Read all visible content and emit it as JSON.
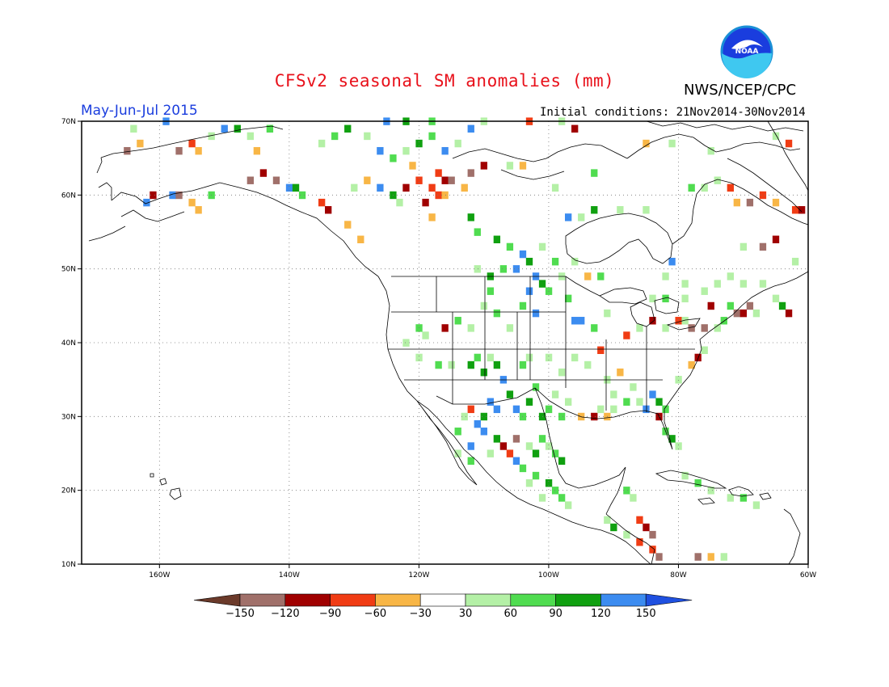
{
  "header": {
    "title": "CFSv2 seasonal SM anomalies (mm)",
    "agency": "NWS/NCEP/CPC",
    "period": "May-Jun-Jul 2015",
    "initial_conditions": "Initial conditions: 21Nov2014-30Nov2014",
    "logo_text": "NOAA"
  },
  "map": {
    "lon_range": [
      -172,
      -60
    ],
    "lat_range": [
      10,
      70
    ],
    "lat_ticks": [
      {
        "value": 70,
        "label": "70N"
      },
      {
        "value": 60,
        "label": "60N"
      },
      {
        "value": 50,
        "label": "50N"
      },
      {
        "value": 40,
        "label": "40N"
      },
      {
        "value": 30,
        "label": "30N"
      },
      {
        "value": 20,
        "label": "20N"
      },
      {
        "value": 10,
        "label": "10N"
      }
    ],
    "lon_ticks": [
      {
        "value": -160,
        "label": "160W"
      },
      {
        "value": -140,
        "label": "140W"
      },
      {
        "value": -120,
        "label": "120W"
      },
      {
        "value": -100,
        "label": "100W"
      },
      {
        "value": -80,
        "label": "80W"
      },
      {
        "value": -60,
        "label": "60W"
      }
    ],
    "grid": "dotted",
    "cell_deg": 1
  },
  "colorbar": {
    "labels": [
      "-150",
      "-120",
      "-90",
      "-60",
      "-30",
      "30",
      "60",
      "90",
      "120",
      "150"
    ],
    "colors": [
      "#6b3a2a",
      "#a0706a",
      "#a00000",
      "#f03c14",
      "#f8b646",
      "#ffffff",
      "#b4f0a6",
      "#50dc50",
      "#10a010",
      "#3c8cf0",
      "#1f50e0"
    ]
  },
  "anomaly_cells": [
    {
      "lon": -157,
      "lat": 66,
      "v": -135
    },
    {
      "lon": -155,
      "lat": 67,
      "v": -60
    },
    {
      "lon": -154,
      "lat": 66,
      "v": -45
    },
    {
      "lon": -152,
      "lat": 68,
      "v": 45
    },
    {
      "lon": -150,
      "lat": 69,
      "v": 130
    },
    {
      "lon": -148,
      "lat": 69,
      "v": 100
    },
    {
      "lon": -146,
      "lat": 68,
      "v": 45
    },
    {
      "lon": -143,
      "lat": 69,
      "v": 75
    },
    {
      "lon": -145,
      "lat": 66,
      "v": -45
    },
    {
      "lon": -146,
      "lat": 62,
      "v": -135
    },
    {
      "lon": -144,
      "lat": 63,
      "v": -105
    },
    {
      "lon": -142,
      "lat": 62,
      "v": -135
    },
    {
      "lon": -140,
      "lat": 61,
      "v": 130
    },
    {
      "lon": -139,
      "lat": 61,
      "v": 100
    },
    {
      "lon": -138,
      "lat": 60,
      "v": 75
    },
    {
      "lon": -155,
      "lat": 59,
      "v": -45
    },
    {
      "lon": -154,
      "lat": 58,
      "v": -45
    },
    {
      "lon": -152,
      "lat": 60,
      "v": 75
    },
    {
      "lon": -158,
      "lat": 60,
      "v": 130
    },
    {
      "lon": -157,
      "lat": 60,
      "v": -135
    },
    {
      "lon": -135,
      "lat": 59,
      "v": -75
    },
    {
      "lon": -134,
      "lat": 58,
      "v": -105
    },
    {
      "lon": -131,
      "lat": 56,
      "v": -45
    },
    {
      "lon": -129,
      "lat": 54,
      "v": -45
    },
    {
      "lon": -135,
      "lat": 67,
      "v": 45
    },
    {
      "lon": -133,
      "lat": 68,
      "v": 75
    },
    {
      "lon": -131,
      "lat": 69,
      "v": 100
    },
    {
      "lon": -128,
      "lat": 68,
      "v": 45
    },
    {
      "lon": -126,
      "lat": 66,
      "v": 130
    },
    {
      "lon": -124,
      "lat": 65,
      "v": 75
    },
    {
      "lon": -122,
      "lat": 66,
      "v": 45
    },
    {
      "lon": -120,
      "lat": 67,
      "v": 100
    },
    {
      "lon": -118,
      "lat": 68,
      "v": 75
    },
    {
      "lon": -116,
      "lat": 66,
      "v": 130
    },
    {
      "lon": -114,
      "lat": 67,
      "v": 45
    },
    {
      "lon": -117,
      "lat": 63,
      "v": -75
    },
    {
      "lon": -116,
      "lat": 62,
      "v": -105
    },
    {
      "lon": -115,
      "lat": 62,
      "v": -135
    },
    {
      "lon": -118,
      "lat": 61,
      "v": -75
    },
    {
      "lon": -119,
      "lat": 59,
      "v": -105
    },
    {
      "lon": -117,
      "lat": 60,
      "v": -75
    },
    {
      "lon": -116,
      "lat": 60,
      "v": -45
    },
    {
      "lon": -120,
      "lat": 62,
      "v": -75
    },
    {
      "lon": -121,
      "lat": 64,
      "v": -45
    },
    {
      "lon": -118,
      "lat": 57,
      "v": -45
    },
    {
      "lon": -112,
      "lat": 63,
      "v": -135
    },
    {
      "lon": -110,
      "lat": 64,
      "v": -105
    },
    {
      "lon": -113,
      "lat": 61,
      "v": -45
    },
    {
      "lon": -126,
      "lat": 61,
      "v": 130
    },
    {
      "lon": -124,
      "lat": 60,
      "v": 100
    },
    {
      "lon": -123,
      "lat": 59,
      "v": 45
    },
    {
      "lon": -122,
      "lat": 61,
      "v": -105
    },
    {
      "lon": -128,
      "lat": 62,
      "v": -45
    },
    {
      "lon": -130,
      "lat": 61,
      "v": 45
    },
    {
      "lon": -104,
      "lat": 64,
      "v": -45
    },
    {
      "lon": -106,
      "lat": 64,
      "v": 45
    },
    {
      "lon": -112,
      "lat": 57,
      "v": 100
    },
    {
      "lon": -111,
      "lat": 55,
      "v": 75
    },
    {
      "lon": -108,
      "lat": 54,
      "v": 100
    },
    {
      "lon": -106,
      "lat": 53,
      "v": 75
    },
    {
      "lon": -104,
      "lat": 52,
      "v": 130
    },
    {
      "lon": -103,
      "lat": 51,
      "v": 100
    },
    {
      "lon": -105,
      "lat": 50,
      "v": 130
    },
    {
      "lon": -107,
      "lat": 50,
      "v": 75
    },
    {
      "lon": -109,
      "lat": 49,
      "v": 100
    },
    {
      "lon": -111,
      "lat": 50,
      "v": 45
    },
    {
      "lon": -102,
      "lat": 49,
      "v": 130
    },
    {
      "lon": -101,
      "lat": 48,
      "v": 100
    },
    {
      "lon": -103,
      "lat": 47,
      "v": 130
    },
    {
      "lon": -104,
      "lat": 45,
      "v": 75
    },
    {
      "lon": -102,
      "lat": 44,
      "v": 130
    },
    {
      "lon": -100,
      "lat": 47,
      "v": 75
    },
    {
      "lon": -98,
      "lat": 49,
      "v": 45
    },
    {
      "lon": -97,
      "lat": 46,
      "v": 75
    },
    {
      "lon": -96,
      "lat": 43,
      "v": 130
    },
    {
      "lon": -99,
      "lat": 51,
      "v": 75
    },
    {
      "lon": -101,
      "lat": 53,
      "v": 45
    },
    {
      "lon": -96,
      "lat": 51,
      "v": 45
    },
    {
      "lon": -94,
      "lat": 49,
      "v": -45
    },
    {
      "lon": -92,
      "lat": 49,
      "v": 75
    },
    {
      "lon": -109,
      "lat": 47,
      "v": 75
    },
    {
      "lon": -110,
      "lat": 45,
      "v": 45
    },
    {
      "lon": -108,
      "lat": 44,
      "v": 75
    },
    {
      "lon": -106,
      "lat": 42,
      "v": 45
    },
    {
      "lon": -112,
      "lat": 42,
      "v": 45
    },
    {
      "lon": -114,
      "lat": 43,
      "v": 75
    },
    {
      "lon": -116,
      "lat": 42,
      "v": -105
    },
    {
      "lon": -119,
      "lat": 41,
      "v": 45
    },
    {
      "lon": -120,
      "lat": 42,
      "v": 75
    },
    {
      "lon": -122,
      "lat": 40,
      "v": 45
    },
    {
      "lon": -120,
      "lat": 38,
      "v": 45
    },
    {
      "lon": -117,
      "lat": 37,
      "v": 75
    },
    {
      "lon": -115,
      "lat": 37,
      "v": 45
    },
    {
      "lon": -112,
      "lat": 37,
      "v": 100
    },
    {
      "lon": -111,
      "lat": 38,
      "v": 75
    },
    {
      "lon": -110,
      "lat": 36,
      "v": 100
    },
    {
      "lon": -109,
      "lat": 38,
      "v": 45
    },
    {
      "lon": -108,
      "lat": 37,
      "v": 100
    },
    {
      "lon": -107,
      "lat": 35,
      "v": 130
    },
    {
      "lon": -106,
      "lat": 33,
      "v": 100
    },
    {
      "lon": -105,
      "lat": 31,
      "v": 130
    },
    {
      "lon": -104,
      "lat": 30,
      "v": 75
    },
    {
      "lon": -103,
      "lat": 32,
      "v": 100
    },
    {
      "lon": -102,
      "lat": 34,
      "v": 75
    },
    {
      "lon": -101,
      "lat": 30,
      "v": 100
    },
    {
      "lon": -100,
      "lat": 31,
      "v": 75
    },
    {
      "lon": -99,
      "lat": 33,
      "v": 45
    },
    {
      "lon": -98,
      "lat": 30,
      "v": 75
    },
    {
      "lon": -97,
      "lat": 32,
      "v": 45
    },
    {
      "lon": -104,
      "lat": 37,
      "v": 75
    },
    {
      "lon": -103,
      "lat": 38,
      "v": 45
    },
    {
      "lon": -100,
      "lat": 38,
      "v": 45
    },
    {
      "lon": -98,
      "lat": 36,
      "v": 45
    },
    {
      "lon": -109,
      "lat": 32,
      "v": 130
    },
    {
      "lon": -108,
      "lat": 31,
      "v": 130
    },
    {
      "lon": -110,
      "lat": 30,
      "v": 100
    },
    {
      "lon": -111,
      "lat": 29,
      "v": 130
    },
    {
      "lon": -112,
      "lat": 31,
      "v": -75
    },
    {
      "lon": -113,
      "lat": 30,
      "v": 45
    },
    {
      "lon": -114,
      "lat": 28,
      "v": 75
    },
    {
      "lon": -110,
      "lat": 28,
      "v": 130
    },
    {
      "lon": -108,
      "lat": 27,
      "v": 100
    },
    {
      "lon": -107,
      "lat": 26,
      "v": -105
    },
    {
      "lon": -106,
      "lat": 25,
      "v": -75
    },
    {
      "lon": -105,
      "lat": 24,
      "v": 130
    },
    {
      "lon": -104,
      "lat": 23,
      "v": 75
    },
    {
      "lon": -105,
      "lat": 27,
      "v": -135
    },
    {
      "lon": -103,
      "lat": 26,
      "v": 45
    },
    {
      "lon": -102,
      "lat": 25,
      "v": 100
    },
    {
      "lon": -101,
      "lat": 27,
      "v": 75
    },
    {
      "lon": -100,
      "lat": 26,
      "v": 45
    },
    {
      "lon": -99,
      "lat": 25,
      "v": 75
    },
    {
      "lon": -98,
      "lat": 24,
      "v": 100
    },
    {
      "lon": -102,
      "lat": 22,
      "v": 75
    },
    {
      "lon": -103,
      "lat": 21,
      "v": 45
    },
    {
      "lon": -100,
      "lat": 21,
      "v": 100
    },
    {
      "lon": -99,
      "lat": 20,
      "v": 75
    },
    {
      "lon": -101,
      "lat": 19,
      "v": 45
    },
    {
      "lon": -98,
      "lat": 19,
      "v": 75
    },
    {
      "lon": -97,
      "lat": 18,
      "v": 45
    },
    {
      "lon": -112,
      "lat": 26,
      "v": 130
    },
    {
      "lon": -114,
      "lat": 25,
      "v": 45
    },
    {
      "lon": -112,
      "lat": 24,
      "v": 75
    },
    {
      "lon": -109,
      "lat": 25,
      "v": 45
    },
    {
      "lon": -95,
      "lat": 30,
      "v": -45
    },
    {
      "lon": -93,
      "lat": 30,
      "v": -105
    },
    {
      "lon": -92,
      "lat": 31,
      "v": 45
    },
    {
      "lon": -91,
      "lat": 30,
      "v": -45
    },
    {
      "lon": -90,
      "lat": 31,
      "v": 45
    },
    {
      "lon": -96,
      "lat": 38,
      "v": 45
    },
    {
      "lon": -94,
      "lat": 37,
      "v": 45
    },
    {
      "lon": -92,
      "lat": 39,
      "v": -75
    },
    {
      "lon": -91,
      "lat": 35,
      "v": 45
    },
    {
      "lon": -90,
      "lat": 33,
      "v": 45
    },
    {
      "lon": -88,
      "lat": 32,
      "v": 75
    },
    {
      "lon": -87,
      "lat": 34,
      "v": 45
    },
    {
      "lon": -86,
      "lat": 32,
      "v": 45
    },
    {
      "lon": -84,
      "lat": 33,
      "v": 130
    },
    {
      "lon": -83,
      "lat": 32,
      "v": 100
    },
    {
      "lon": -82,
      "lat": 31,
      "v": 75
    },
    {
      "lon": -83,
      "lat": 30,
      "v": -105
    },
    {
      "lon": -82,
      "lat": 28,
      "v": 75
    },
    {
      "lon": -81,
      "lat": 27,
      "v": 100
    },
    {
      "lon": -80,
      "lat": 26,
      "v": 45
    },
    {
      "lon": -85,
      "lat": 31,
      "v": 130
    },
    {
      "lon": -89,
      "lat": 36,
      "v": -45
    },
    {
      "lon": -88,
      "lat": 41,
      "v": -75
    },
    {
      "lon": -86,
      "lat": 42,
      "v": 45
    },
    {
      "lon": -84,
      "lat": 43,
      "v": -105
    },
    {
      "lon": -82,
      "lat": 42,
      "v": 45
    },
    {
      "lon": -80,
      "lat": 43,
      "v": -75
    },
    {
      "lon": -79,
      "lat": 43,
      "v": 45
    },
    {
      "lon": -78,
      "lat": 42,
      "v": -135
    },
    {
      "lon": -76,
      "lat": 42,
      "v": -135
    },
    {
      "lon": -74,
      "lat": 42,
      "v": 45
    },
    {
      "lon": -73,
      "lat": 43,
      "v": 75
    },
    {
      "lon": -77,
      "lat": 38,
      "v": -105
    },
    {
      "lon": -76,
      "lat": 39,
      "v": 45
    },
    {
      "lon": -78,
      "lat": 37,
      "v": -45
    },
    {
      "lon": -80,
      "lat": 35,
      "v": 45
    },
    {
      "lon": -95,
      "lat": 43,
      "v": 130
    },
    {
      "lon": -93,
      "lat": 42,
      "v": 75
    },
    {
      "lon": -91,
      "lat": 44,
      "v": 45
    },
    {
      "lon": -84,
      "lat": 46,
      "v": 45
    },
    {
      "lon": -82,
      "lat": 46,
      "v": 75
    },
    {
      "lon": -79,
      "lat": 46,
      "v": 45
    },
    {
      "lon": -75,
      "lat": 45,
      "v": -105
    },
    {
      "lon": -72,
      "lat": 45,
      "v": 75
    },
    {
      "lon": -71,
      "lat": 44,
      "v": -135
    },
    {
      "lon": -70,
      "lat": 44,
      "v": -105
    },
    {
      "lon": -69,
      "lat": 45,
      "v": -135
    },
    {
      "lon": -68,
      "lat": 44,
      "v": 45
    },
    {
      "lon": -64,
      "lat": 45,
      "v": 100
    },
    {
      "lon": -63,
      "lat": 44,
      "v": -105
    },
    {
      "lon": -65,
      "lat": 46,
      "v": 45
    },
    {
      "lon": -82,
      "lat": 49,
      "v": 45
    },
    {
      "lon": -79,
      "lat": 48,
      "v": 45
    },
    {
      "lon": -76,
      "lat": 47,
      "v": 45
    },
    {
      "lon": -74,
      "lat": 48,
      "v": 45
    },
    {
      "lon": -72,
      "lat": 49,
      "v": 45
    },
    {
      "lon": -70,
      "lat": 48,
      "v": 45
    },
    {
      "lon": -67,
      "lat": 48,
      "v": 45
    },
    {
      "lon": -62,
      "lat": 51,
      "v": 45
    },
    {
      "lon": -81,
      "lat": 51,
      "v": 130
    },
    {
      "lon": -67,
      "lat": 53,
      "v": -135
    },
    {
      "lon": -65,
      "lat": 54,
      "v": -105
    },
    {
      "lon": -70,
      "lat": 53,
      "v": 45
    },
    {
      "lon": -71,
      "lat": 59,
      "v": -45
    },
    {
      "lon": -69,
      "lat": 59,
      "v": -135
    },
    {
      "lon": -67,
      "lat": 60,
      "v": -75
    },
    {
      "lon": -65,
      "lat": 59,
      "v": -45
    },
    {
      "lon": -62,
      "lat": 58,
      "v": -75
    },
    {
      "lon": -61,
      "lat": 58,
      "v": -105
    },
    {
      "lon": -72,
      "lat": 61,
      "v": -75
    },
    {
      "lon": -76,
      "lat": 61,
      "v": 45
    },
    {
      "lon": -78,
      "lat": 61,
      "v": 75
    },
    {
      "lon": -74,
      "lat": 62,
      "v": 45
    },
    {
      "lon": -85,
      "lat": 58,
      "v": 45
    },
    {
      "lon": -89,
      "lat": 58,
      "v": 45
    },
    {
      "lon": -93,
      "lat": 58,
      "v": 100
    },
    {
      "lon": -95,
      "lat": 57,
      "v": 45
    },
    {
      "lon": -97,
      "lat": 57,
      "v": 130
    },
    {
      "lon": -99,
      "lat": 61,
      "v": 45
    },
    {
      "lon": -93,
      "lat": 63,
      "v": 75
    },
    {
      "lon": -85,
      "lat": 67,
      "v": -45
    },
    {
      "lon": -81,
      "lat": 67,
      "v": 45
    },
    {
      "lon": -75,
      "lat": 66,
      "v": 45
    },
    {
      "lon": -65,
      "lat": 68,
      "v": 45
    },
    {
      "lon": -63,
      "lat": 67,
      "v": -75
    },
    {
      "lon": -86,
      "lat": 16,
      "v": -60
    },
    {
      "lon": -85,
      "lat": 15,
      "v": -105
    },
    {
      "lon": -84,
      "lat": 14,
      "v": -135
    },
    {
      "lon": -86,
      "lat": 13,
      "v": -75
    },
    {
      "lon": -88,
      "lat": 14,
      "v": 45
    },
    {
      "lon": -90,
      "lat": 15,
      "v": 100
    },
    {
      "lon": -91,
      "lat": 16,
      "v": 45
    },
    {
      "lon": -83,
      "lat": 11,
      "v": -135
    },
    {
      "lon": -84,
      "lat": 12,
      "v": -75
    },
    {
      "lon": -77,
      "lat": 11,
      "v": -135
    },
    {
      "lon": -75,
      "lat": 11,
      "v": -45
    },
    {
      "lon": -73,
      "lat": 11,
      "v": 45
    },
    {
      "lon": -87,
      "lat": 19,
      "v": 45
    },
    {
      "lon": -88,
      "lat": 20,
      "v": 75
    },
    {
      "lon": -79,
      "lat": 22,
      "v": 45
    },
    {
      "lon": -77,
      "lat": 21,
      "v": 75
    },
    {
      "lon": -75,
      "lat": 20,
      "v": 45
    },
    {
      "lon": -72,
      "lat": 19,
      "v": 45
    },
    {
      "lon": -70,
      "lat": 19,
      "v": 75
    },
    {
      "lon": -68,
      "lat": 18,
      "v": 45
    },
    {
      "lon": -159,
      "lat": 70,
      "v": 130
    },
    {
      "lon": -164,
      "lat": 69,
      "v": 45
    },
    {
      "lon": -165,
      "lat": 66,
      "v": -135
    },
    {
      "lon": -163,
      "lat": 67,
      "v": -45
    },
    {
      "lon": -161,
      "lat": 60,
      "v": -105
    },
    {
      "lon": -162,
      "lat": 59,
      "v": 130
    },
    {
      "lon": -125,
      "lat": 70,
      "v": 130
    },
    {
      "lon": -122,
      "lat": 70,
      "v": 100
    },
    {
      "lon": -118,
      "lat": 70,
      "v": 75
    },
    {
      "lon": -112,
      "lat": 69,
      "v": 130
    },
    {
      "lon": -110,
      "lat": 70,
      "v": 45
    },
    {
      "lon": -103,
      "lat": 70,
      "v": -75
    },
    {
      "lon": -98,
      "lat": 70,
      "v": 45
    },
    {
      "lon": -96,
      "lat": 69,
      "v": -105
    }
  ]
}
